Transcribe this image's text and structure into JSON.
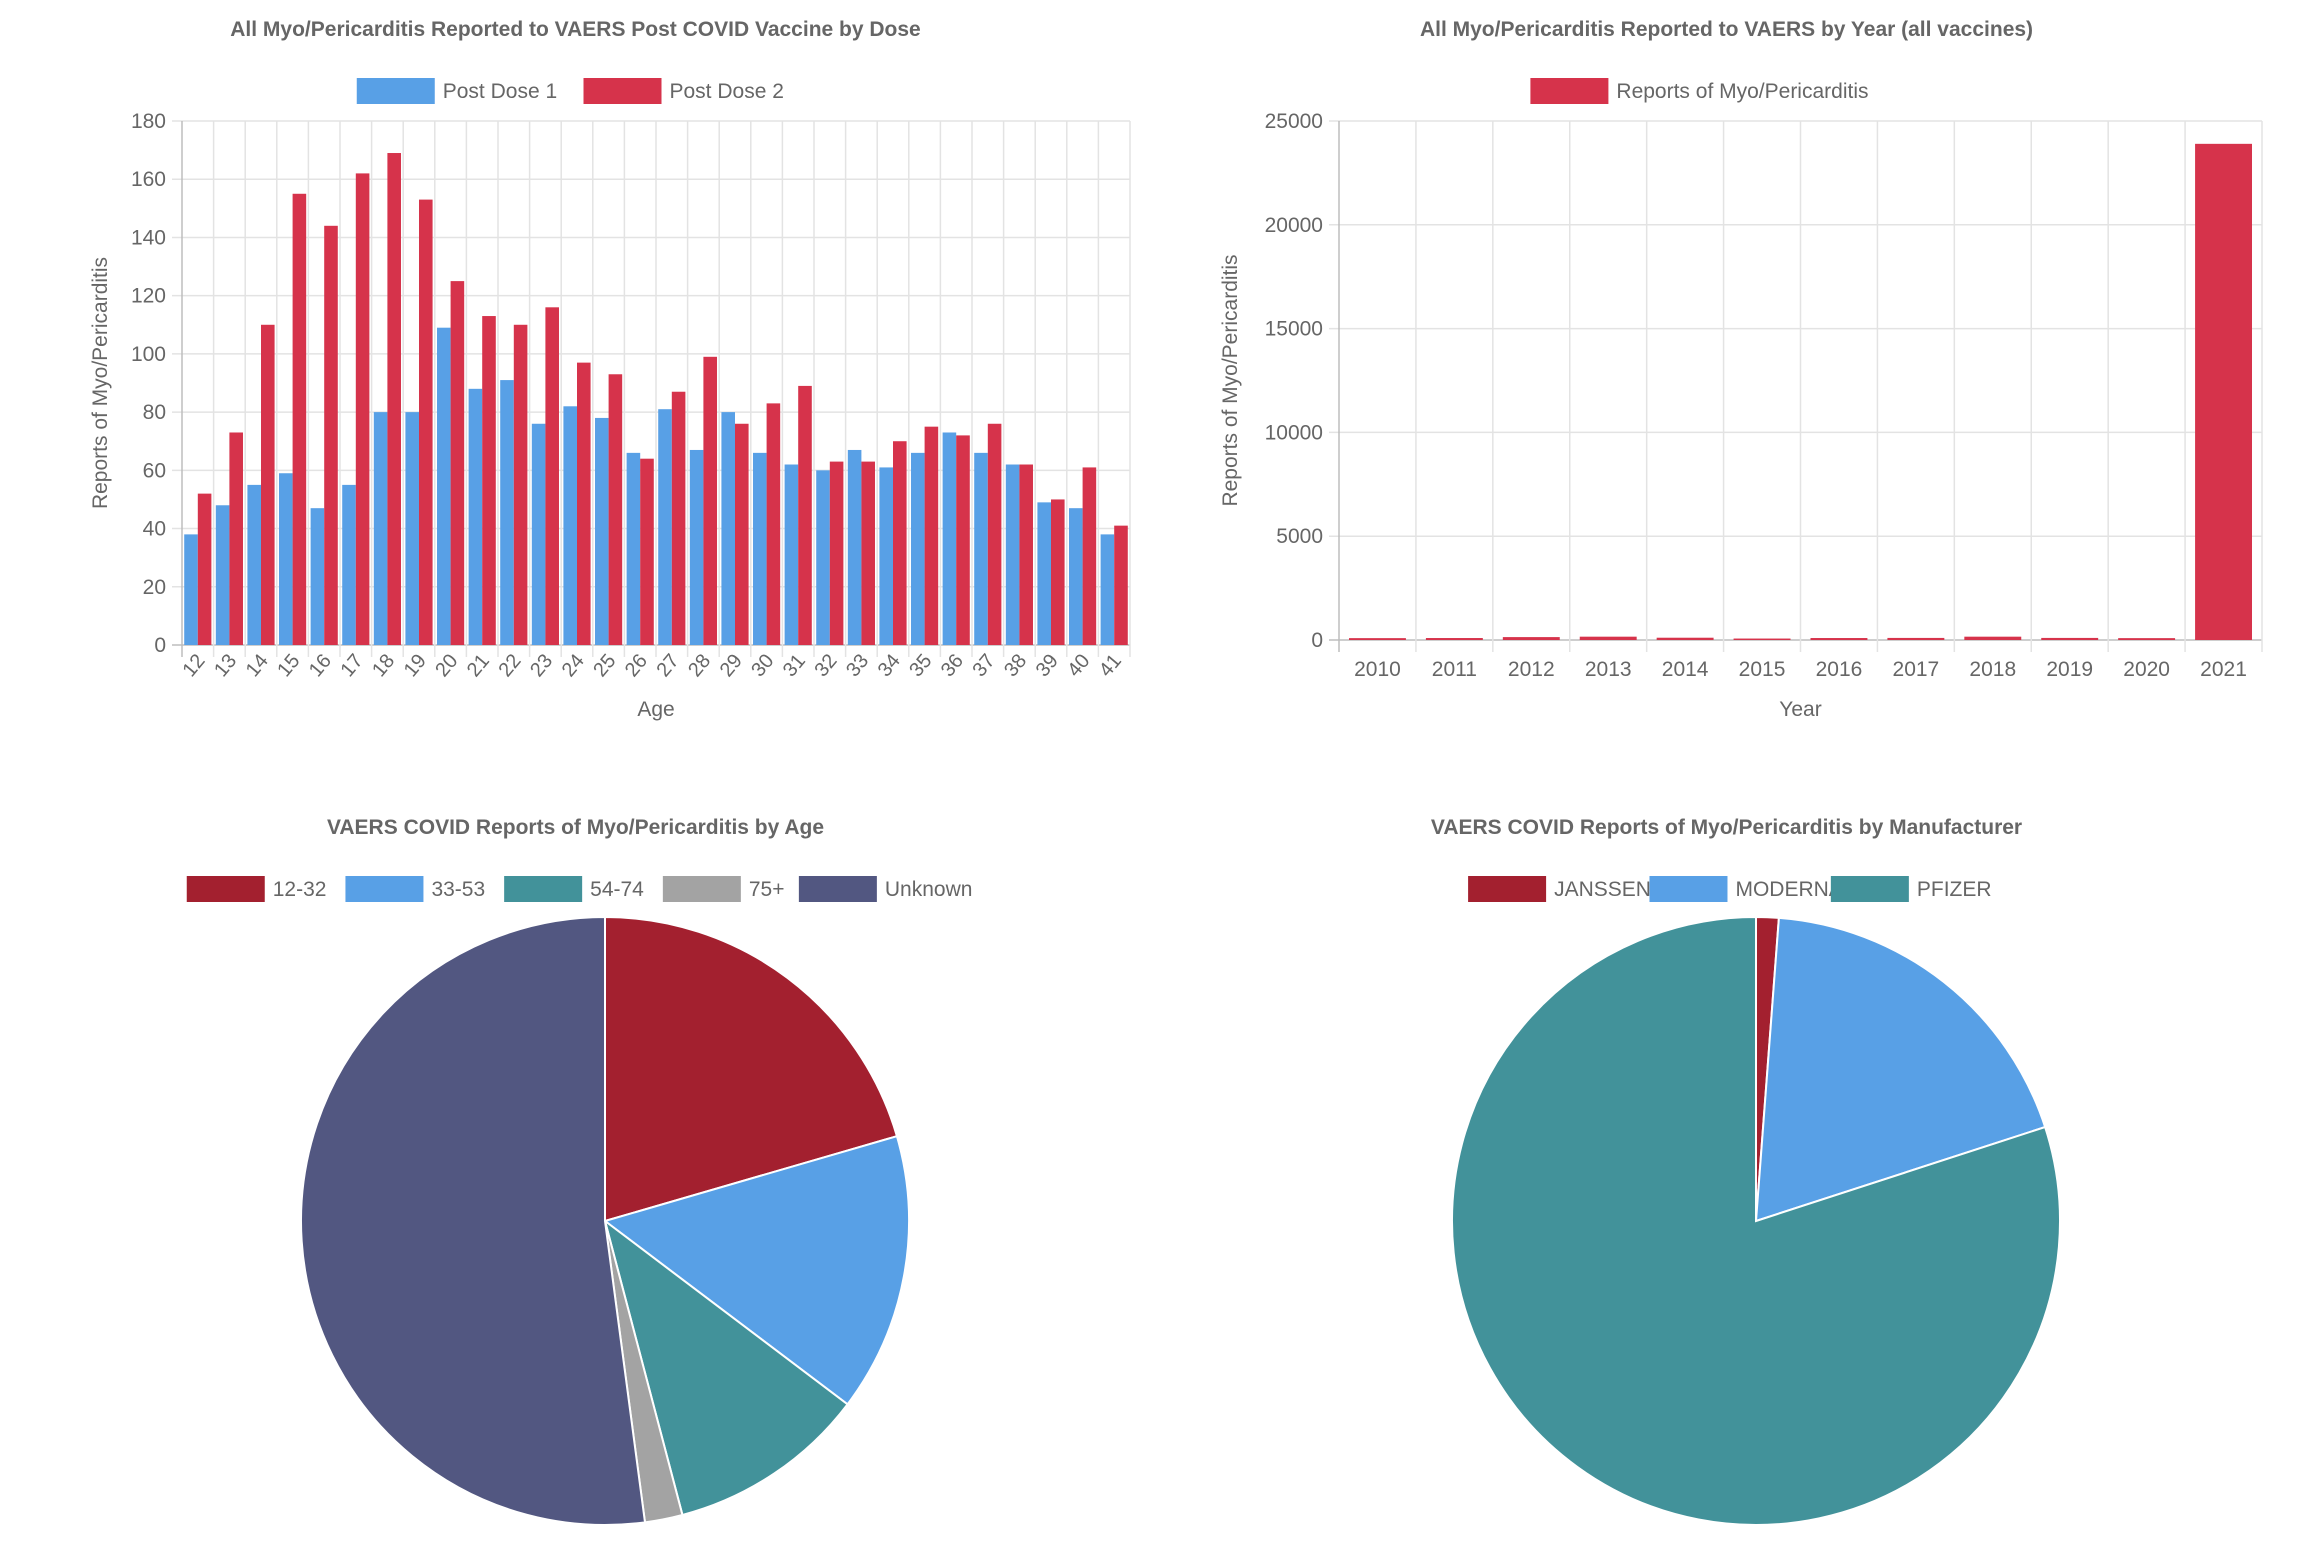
{
  "chart_data": [
    {
      "id": "dose",
      "type": "bar",
      "title": "All Myo/Pericarditis Reported to VAERS Post COVID Vaccine by Dose",
      "xlabel": "Age",
      "ylabel": "Reports of Myo/Pericarditis",
      "ylim": [
        0,
        180
      ],
      "yticks": [
        0,
        20,
        40,
        60,
        80,
        100,
        120,
        140,
        160,
        180
      ],
      "grid": true,
      "legend_position": "top-center",
      "categories": [
        "12",
        "13",
        "14",
        "15",
        "16",
        "17",
        "18",
        "19",
        "20",
        "21",
        "22",
        "23",
        "24",
        "25",
        "26",
        "27",
        "28",
        "29",
        "30",
        "31",
        "32",
        "33",
        "34",
        "35",
        "36",
        "37",
        "38",
        "39",
        "40",
        "41"
      ],
      "series": [
        {
          "name": "Post Dose 1",
          "color": "#58a0e6",
          "values": [
            38,
            48,
            55,
            59,
            47,
            55,
            80,
            80,
            109,
            88,
            91,
            76,
            82,
            78,
            66,
            81,
            67,
            80,
            66,
            62,
            60,
            67,
            61,
            66,
            73,
            66,
            62,
            49,
            47,
            38
          ]
        },
        {
          "name": "Post Dose 2",
          "color": "#d6334b",
          "values": [
            52,
            73,
            110,
            155,
            144,
            162,
            169,
            153,
            125,
            113,
            110,
            116,
            97,
            93,
            64,
            87,
            99,
            76,
            83,
            89,
            63,
            63,
            70,
            75,
            72,
            76,
            62,
            50,
            61,
            41
          ]
        }
      ]
    },
    {
      "id": "year",
      "type": "bar",
      "title": "All Myo/Pericarditis Reported to VAERS by Year (all vaccines)",
      "xlabel": "Year",
      "ylabel": "Reports of Myo/Pericarditis",
      "ylim": [
        0,
        25000
      ],
      "yticks": [
        0,
        5000,
        10000,
        15000,
        20000,
        25000
      ],
      "grid": true,
      "legend_position": "top-center",
      "categories": [
        "2010",
        "2011",
        "2012",
        "2013",
        "2014",
        "2015",
        "2016",
        "2017",
        "2018",
        "2019",
        "2020",
        "2021"
      ],
      "series": [
        {
          "name": "Reports of Myo/Pericarditis",
          "color": "#d6334b",
          "values": [
            90,
            95,
            140,
            160,
            110,
            70,
            95,
            100,
            160,
            100,
            90,
            23900
          ]
        }
      ]
    },
    {
      "id": "age",
      "type": "pie",
      "title": "VAERS COVID Reports of Myo/Pericarditis by Age",
      "legend_position": "top-center",
      "labels": [
        "12-32",
        "33-53",
        "54-74",
        "75+",
        "Unknown"
      ],
      "values": [
        20.5,
        14.8,
        10.6,
        2.0,
        52.1
      ],
      "colors": [
        "#a3202f",
        "#58a0e6",
        "#42929a",
        "#a3a3a3",
        "#525781"
      ]
    },
    {
      "id": "mfr",
      "type": "pie",
      "title": "VAERS COVID Reports of Myo/Pericarditis by Manufacturer",
      "legend_position": "top-center",
      "labels": [
        "JANSSEN",
        "MODERNA",
        "PFIZER"
      ],
      "values": [
        1.2,
        18.8,
        80.0
      ],
      "colors": [
        "#a3202f",
        "#58a0e6",
        "#42929a"
      ]
    }
  ]
}
